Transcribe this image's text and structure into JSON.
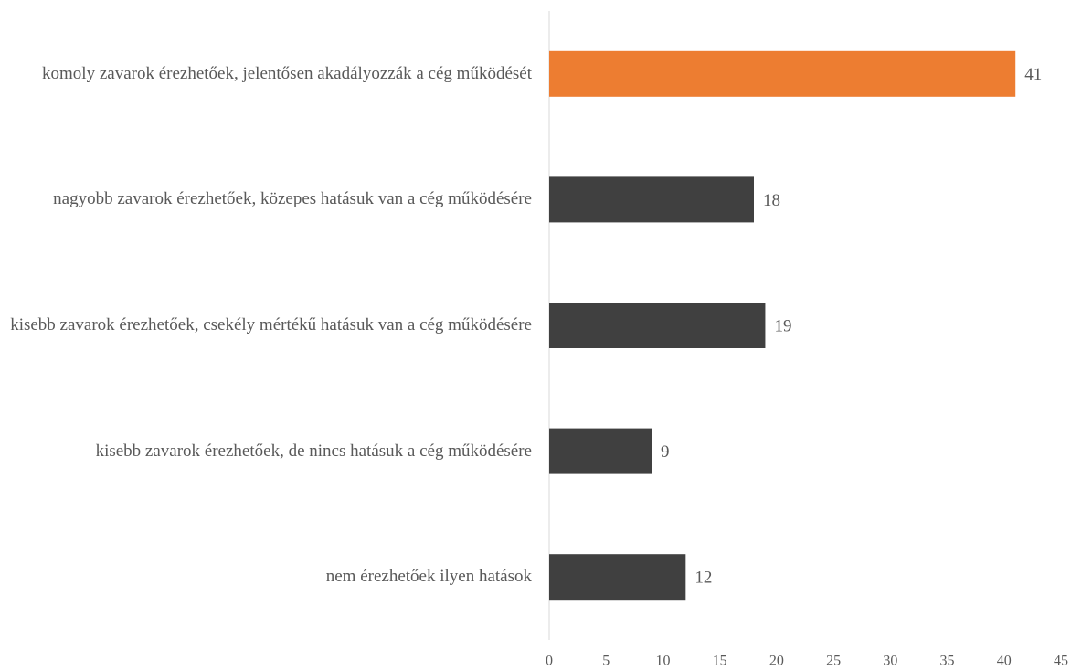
{
  "chart_data": {
    "type": "barh",
    "categories": [
      "komoly zavarok érezhetőek, jelentősen akadályozzák a cég működését",
      "nagyobb zavarok érezhetőek, közepes hatásuk van a cég működésére",
      "kisebb zavarok érezhetőek, csekély mértékű hatásuk van a cég működésére",
      "kisebb zavarok érezhetőek, de nincs hatásuk a cég működésére",
      "nem érezhetőek ilyen hatások"
    ],
    "values": [
      41,
      18,
      19,
      9,
      12
    ],
    "colors": [
      "#ed7d31",
      "#404040",
      "#404040",
      "#404040",
      "#404040"
    ],
    "xlim": [
      0,
      45
    ],
    "xticks": [
      0,
      5,
      10,
      15,
      20,
      25,
      30,
      35,
      40,
      45
    ]
  }
}
